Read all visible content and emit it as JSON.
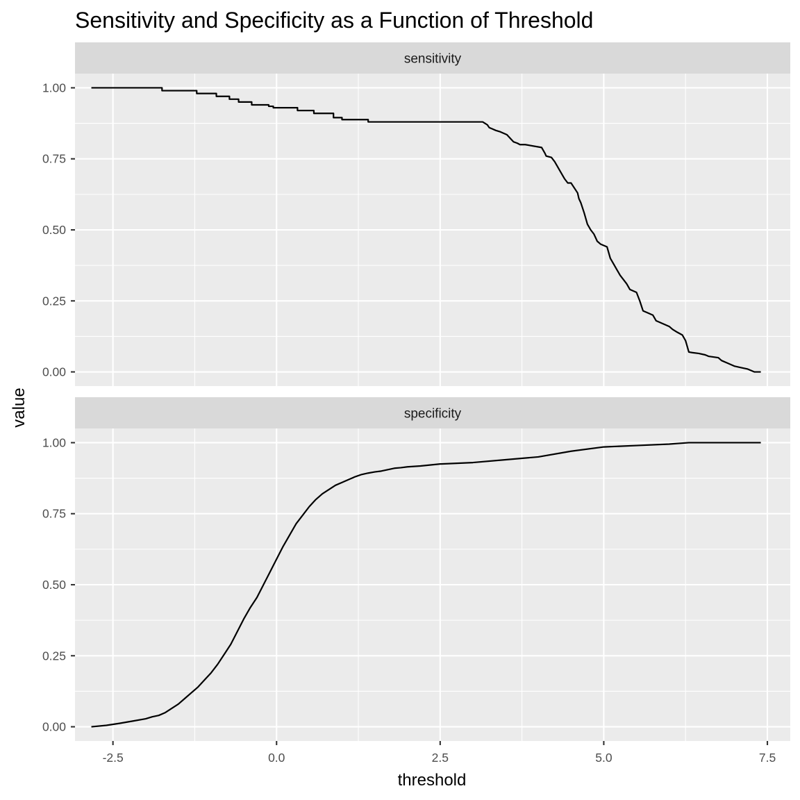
{
  "chart_data": {
    "type": "line",
    "title": "Sensitivity and Specificity as a Function of Threshold",
    "xlabel": "threshold",
    "ylabel": "value",
    "xlim": [
      -3.08,
      7.85
    ],
    "ylim": [
      -0.05,
      1.05
    ],
    "x_breaks": [
      -2.5,
      0.0,
      2.5,
      5.0,
      7.5
    ],
    "x_tick_labels": [
      "-2.5",
      "0.0",
      "2.5",
      "5.0",
      "7.5"
    ],
    "x_minor_breaks": [
      -1.25,
      1.25,
      3.75,
      6.25
    ],
    "y_breaks": [
      0,
      0.25,
      0.5,
      0.75,
      1.0
    ],
    "y_tick_labels": [
      "0.00",
      "0.25",
      "0.50",
      "0.75",
      "1.00"
    ],
    "y_minor_breaks": [
      0.125,
      0.375,
      0.625,
      0.875
    ],
    "grid": true,
    "panels": [
      {
        "strip": "sensitivity",
        "x": [
          -2.83,
          -1.75,
          -1.75,
          -1.22,
          -1.22,
          -0.92,
          -0.92,
          -0.72,
          -0.72,
          -0.58,
          -0.58,
          -0.38,
          -0.38,
          -0.12,
          -0.12,
          -0.05,
          -0.05,
          0.32,
          0.32,
          0.57,
          0.57,
          0.87,
          0.87,
          1.0,
          1.0,
          1.4,
          1.4,
          3.15,
          3.22,
          3.25,
          3.3,
          3.35,
          3.42,
          3.52,
          3.58,
          3.62,
          3.68,
          3.72,
          3.8,
          4.05,
          4.1,
          4.12,
          4.2,
          4.25,
          4.35,
          4.4,
          4.45,
          4.5,
          4.6,
          4.62,
          4.65,
          4.7,
          4.75,
          4.8,
          4.85,
          4.9,
          4.95,
          5.05,
          5.1,
          5.15,
          5.2,
          5.25,
          5.3,
          5.35,
          5.4,
          5.5,
          5.55,
          5.6,
          5.65,
          5.75,
          5.8,
          5.9,
          6.0,
          6.05,
          6.12,
          6.2,
          6.25,
          6.3,
          6.35,
          6.45,
          6.55,
          6.6,
          6.75,
          6.8,
          6.9,
          7.0,
          7.1,
          7.2,
          7.25,
          7.3,
          7.4
        ],
        "y": [
          1.0,
          1.0,
          0.99,
          0.99,
          0.98,
          0.98,
          0.97,
          0.97,
          0.96,
          0.96,
          0.95,
          0.95,
          0.94,
          0.94,
          0.935,
          0.935,
          0.93,
          0.93,
          0.92,
          0.92,
          0.91,
          0.91,
          0.895,
          0.895,
          0.888,
          0.888,
          0.88,
          0.88,
          0.87,
          0.86,
          0.855,
          0.85,
          0.845,
          0.835,
          0.82,
          0.81,
          0.805,
          0.8,
          0.8,
          0.79,
          0.77,
          0.76,
          0.755,
          0.74,
          0.7,
          0.68,
          0.665,
          0.665,
          0.63,
          0.61,
          0.595,
          0.56,
          0.52,
          0.5,
          0.485,
          0.46,
          0.45,
          0.44,
          0.4,
          0.38,
          0.36,
          0.34,
          0.325,
          0.31,
          0.29,
          0.28,
          0.25,
          0.215,
          0.21,
          0.2,
          0.18,
          0.17,
          0.16,
          0.15,
          0.14,
          0.13,
          0.11,
          0.07,
          0.068,
          0.065,
          0.06,
          0.055,
          0.05,
          0.04,
          0.03,
          0.02,
          0.015,
          0.01,
          0.005,
          0.0,
          0.0
        ]
      },
      {
        "strip": "specificity",
        "x": [
          -2.83,
          -2.6,
          -2.4,
          -2.2,
          -2.0,
          -1.9,
          -1.8,
          -1.7,
          -1.6,
          -1.5,
          -1.4,
          -1.3,
          -1.2,
          -1.1,
          -1.0,
          -0.9,
          -0.8,
          -0.7,
          -0.6,
          -0.5,
          -0.4,
          -0.3,
          -0.2,
          -0.1,
          0.0,
          0.1,
          0.2,
          0.3,
          0.4,
          0.5,
          0.6,
          0.7,
          0.8,
          0.9,
          1.0,
          1.1,
          1.2,
          1.3,
          1.4,
          1.5,
          1.6,
          1.7,
          1.8,
          1.9,
          2.0,
          2.2,
          2.5,
          3.0,
          3.5,
          4.0,
          4.5,
          5.0,
          5.5,
          6.0,
          6.3,
          6.6,
          6.9,
          7.2,
          7.4
        ],
        "y": [
          0.0,
          0.005,
          0.012,
          0.02,
          0.028,
          0.035,
          0.04,
          0.05,
          0.065,
          0.08,
          0.1,
          0.12,
          0.14,
          0.165,
          0.19,
          0.22,
          0.255,
          0.29,
          0.335,
          0.38,
          0.42,
          0.455,
          0.5,
          0.545,
          0.59,
          0.635,
          0.675,
          0.715,
          0.745,
          0.775,
          0.8,
          0.82,
          0.835,
          0.85,
          0.86,
          0.87,
          0.88,
          0.888,
          0.893,
          0.897,
          0.9,
          0.905,
          0.91,
          0.912,
          0.915,
          0.918,
          0.925,
          0.93,
          0.94,
          0.95,
          0.97,
          0.985,
          0.99,
          0.995,
          1.0,
          1.0,
          1.0,
          1.0,
          1.0
        ]
      }
    ]
  }
}
